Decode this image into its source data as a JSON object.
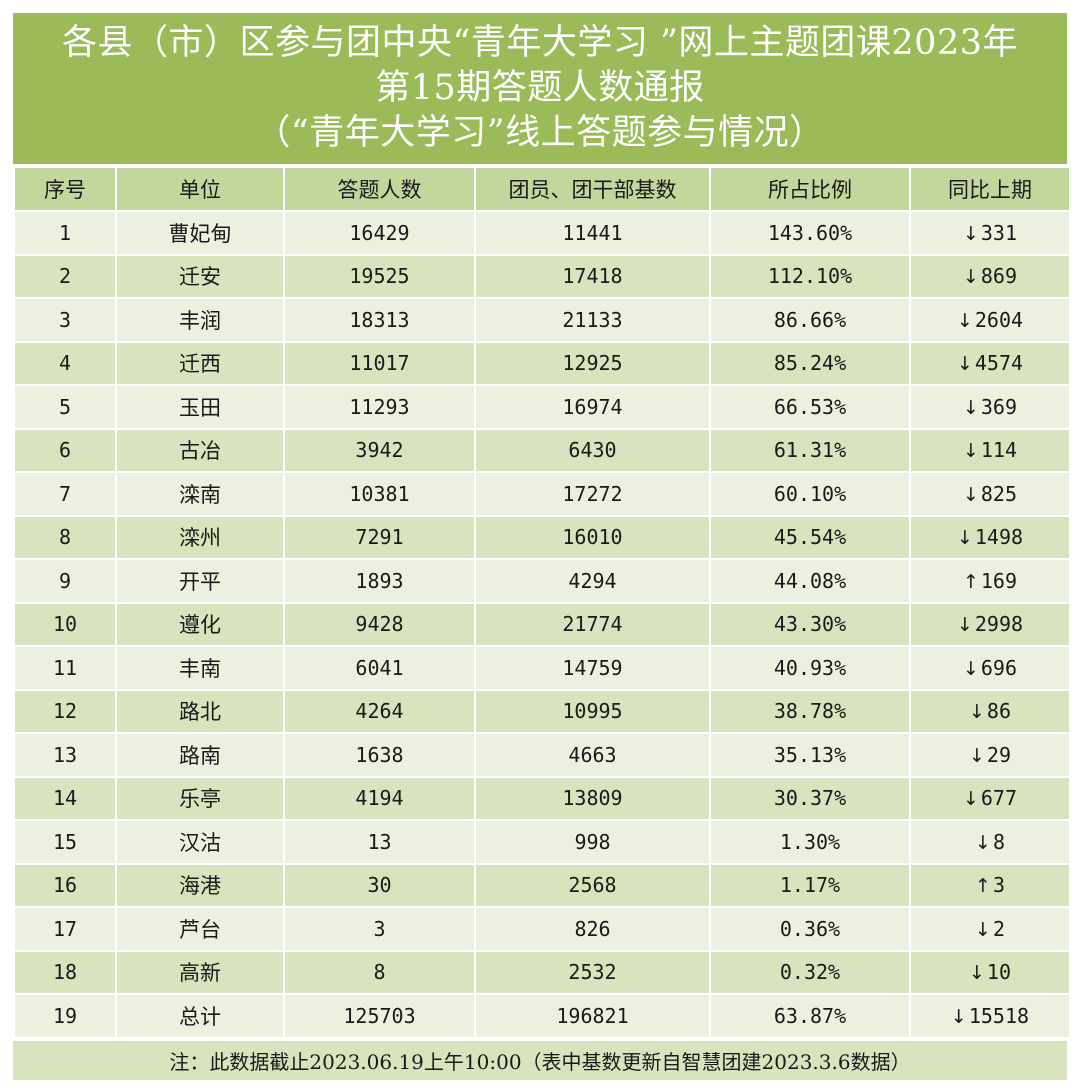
{
  "title": {
    "line1": "各县（市）区参与团中央“青年大学习 ”网上主题团课2023年",
    "line2": "第15期答题人数通报",
    "line3": "（“青年大学习”线上答题参与情况）"
  },
  "headers": [
    "序号",
    "单位",
    "答题人数",
    "团员、团干部基数",
    "所占比例",
    "同比上期"
  ],
  "rows": [
    {
      "no": "1",
      "unit": "曹妃甸",
      "answered": "16429",
      "base": "11441",
      "ratio": "143.60%",
      "dir": "↓",
      "change": "331"
    },
    {
      "no": "2",
      "unit": "迁安",
      "answered": "19525",
      "base": "17418",
      "ratio": "112.10%",
      "dir": "↓",
      "change": "869"
    },
    {
      "no": "3",
      "unit": "丰润",
      "answered": "18313",
      "base": "21133",
      "ratio": "86.66%",
      "dir": "↓",
      "change": "2604"
    },
    {
      "no": "4",
      "unit": "迁西",
      "answered": "11017",
      "base": "12925",
      "ratio": "85.24%",
      "dir": "↓",
      "change": "4574"
    },
    {
      "no": "5",
      "unit": "玉田",
      "answered": "11293",
      "base": "16974",
      "ratio": "66.53%",
      "dir": "↓",
      "change": "369"
    },
    {
      "no": "6",
      "unit": "古冶",
      "answered": "3942",
      "base": "6430",
      "ratio": "61.31%",
      "dir": "↓",
      "change": "114"
    },
    {
      "no": "7",
      "unit": "滦南",
      "answered": "10381",
      "base": "17272",
      "ratio": "60.10%",
      "dir": "↓",
      "change": "825"
    },
    {
      "no": "8",
      "unit": "滦州",
      "answered": "7291",
      "base": "16010",
      "ratio": "45.54%",
      "dir": "↓",
      "change": "1498"
    },
    {
      "no": "9",
      "unit": "开平",
      "answered": "1893",
      "base": "4294",
      "ratio": "44.08%",
      "dir": "↑",
      "change": "169"
    },
    {
      "no": "10",
      "unit": "遵化",
      "answered": "9428",
      "base": "21774",
      "ratio": "43.30%",
      "dir": "↓",
      "change": "2998"
    },
    {
      "no": "11",
      "unit": "丰南",
      "answered": "6041",
      "base": "14759",
      "ratio": "40.93%",
      "dir": "↓",
      "change": "696"
    },
    {
      "no": "12",
      "unit": "路北",
      "answered": "4264",
      "base": "10995",
      "ratio": "38.78%",
      "dir": "↓",
      "change": "86"
    },
    {
      "no": "13",
      "unit": "路南",
      "answered": "1638",
      "base": "4663",
      "ratio": "35.13%",
      "dir": "↓",
      "change": "29"
    },
    {
      "no": "14",
      "unit": "乐亭",
      "answered": "4194",
      "base": "13809",
      "ratio": "30.37%",
      "dir": "↓",
      "change": "677"
    },
    {
      "no": "15",
      "unit": "汉沽",
      "answered": "13",
      "base": "998",
      "ratio": "1.30%",
      "dir": "↓",
      "change": "8"
    },
    {
      "no": "16",
      "unit": "海港",
      "answered": "30",
      "base": "2568",
      "ratio": "1.17%",
      "dir": "↑",
      "change": "3"
    },
    {
      "no": "17",
      "unit": "芦台",
      "answered": "3",
      "base": "826",
      "ratio": "0.36%",
      "dir": "↓",
      "change": "2"
    },
    {
      "no": "18",
      "unit": "高新",
      "answered": "8",
      "base": "2532",
      "ratio": "0.32%",
      "dir": "↓",
      "change": "10"
    },
    {
      "no": "19",
      "unit": "总计",
      "answered": "125703",
      "base": "196821",
      "ratio": "63.87%",
      "dir": "↓",
      "change": "15518"
    }
  ],
  "note": "注：此数据截止2023.06.19上午10:00（表中基数更新自智慧团建2023.3.6数据）",
  "colors": {
    "title_bg": "#9bbb59",
    "header_bg": "#c3d69b",
    "row_light": "#ebf1de",
    "row_dark": "#d7e4bd"
  }
}
